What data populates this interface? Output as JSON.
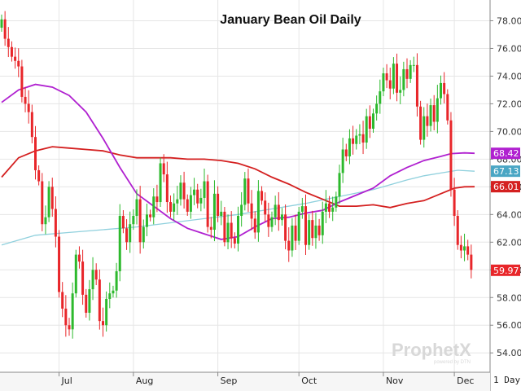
{
  "chart_data": {
    "type": "candlestick",
    "title": "January Bean Oil Daily",
    "xlabel": "",
    "ylabel": "",
    "ylim": [
      52.6,
      79.5
    ],
    "yticks": [
      54.0,
      56.0,
      58.0,
      60.0,
      62.0,
      64.0,
      66.0,
      68.0,
      70.0,
      72.0,
      74.0,
      76.0,
      78.0
    ],
    "x_tick_labels": [
      "Jul",
      "Aug",
      "Sep",
      "Oct",
      "Nov",
      "Dec"
    ],
    "x_tick_bar_index": [
      17,
      39,
      64,
      88,
      113,
      134
    ],
    "bar_count": 140,
    "period_label": "1 Day",
    "grid": true,
    "up_color": "#2db92d",
    "down_color": "#e8262a",
    "series": [
      {
        "type": "candlestick",
        "closes": [
          78.1,
          76.7,
          76.1,
          75.4,
          75.1,
          74.7,
          72.5,
          72.0,
          71.4,
          69.6,
          67.2,
          66.4,
          63.3,
          63.8,
          66.0,
          64.4,
          62.4,
          58.4,
          57.2,
          56.0,
          55.7,
          58.3,
          61.1,
          60.6,
          58.2,
          56.9,
          58.6,
          60.0,
          59.3,
          56.3,
          56.0,
          57.9,
          58.3,
          58.5,
          59.9,
          63.9,
          63.0,
          62.0,
          63.3,
          63.9,
          65.1,
          62.0,
          63.1,
          64.0,
          63.8,
          65.3,
          64.9,
          67.7,
          66.9,
          64.9,
          64.2,
          64.8,
          65.1,
          66.3,
          65.1,
          64.2,
          65.4,
          65.8,
          64.8,
          65.2,
          66.4,
          63.1,
          62.9,
          65.5,
          63.9,
          64.2,
          62.0,
          63.4,
          62.3,
          61.9,
          63.9,
          64.7,
          66.6,
          64.8,
          63.7,
          62.7,
          65.7,
          65.0,
          64.0,
          63.1,
          63.8,
          64.7,
          63.6,
          64.0,
          62.1,
          61.4,
          63.2,
          62.1,
          64.2,
          64.6,
          61.8,
          63.6,
          62.3,
          63.2,
          62.5,
          64.2,
          64.8,
          64.2,
          64.5,
          65.3,
          67.0,
          68.7,
          68.2,
          69.5,
          69.1,
          69.7,
          69.8,
          69.2,
          71.1,
          70.2,
          71.3,
          72.0,
          72.9,
          74.2,
          73.7,
          73.1,
          74.9,
          72.8,
          73.0,
          74.5,
          73.8,
          74.8,
          74.8,
          71.8,
          69.4,
          71.1,
          70.4,
          71.9,
          70.7,
          72.4,
          73.5,
          72.7,
          70.8,
          65.8,
          63.9,
          61.8,
          61.4,
          61.7,
          61.1,
          60.0
        ],
        "last": 59.97,
        "last_color": "#e8262a"
      },
      {
        "type": "line",
        "label": "68.42",
        "color": "#b020d0",
        "knots": [
          [
            0,
            72.1
          ],
          [
            5,
            73.0
          ],
          [
            10,
            73.4
          ],
          [
            15,
            73.2
          ],
          [
            20,
            72.6
          ],
          [
            25,
            71.4
          ],
          [
            30,
            69.5
          ],
          [
            35,
            67.4
          ],
          [
            40,
            65.5
          ],
          [
            45,
            64.6
          ],
          [
            50,
            63.7
          ],
          [
            55,
            63.0
          ],
          [
            60,
            62.6
          ],
          [
            65,
            62.2
          ],
          [
            70,
            62.4
          ],
          [
            75,
            63.1
          ],
          [
            80,
            63.7
          ],
          [
            85,
            63.8
          ],
          [
            90,
            64.1
          ],
          [
            95,
            64.3
          ],
          [
            100,
            64.9
          ],
          [
            105,
            65.4
          ],
          [
            110,
            65.9
          ],
          [
            115,
            66.8
          ],
          [
            120,
            67.4
          ],
          [
            125,
            67.9
          ],
          [
            130,
            68.2
          ],
          [
            133,
            68.4
          ],
          [
            137,
            68.45
          ],
          [
            140,
            68.42
          ]
        ]
      },
      {
        "type": "line",
        "label": "66.01",
        "color": "#d42020",
        "knots": [
          [
            0,
            66.7
          ],
          [
            5,
            68.1
          ],
          [
            10,
            68.6
          ],
          [
            15,
            68.9
          ],
          [
            20,
            68.8
          ],
          [
            25,
            68.7
          ],
          [
            30,
            68.6
          ],
          [
            35,
            68.3
          ],
          [
            40,
            68.1
          ],
          [
            45,
            68.1
          ],
          [
            50,
            68.1
          ],
          [
            55,
            68.0
          ],
          [
            60,
            68.0
          ],
          [
            65,
            67.9
          ],
          [
            70,
            67.7
          ],
          [
            75,
            67.3
          ],
          [
            80,
            66.7
          ],
          [
            85,
            66.2
          ],
          [
            90,
            65.6
          ],
          [
            95,
            65.1
          ],
          [
            100,
            64.6
          ],
          [
            105,
            64.6
          ],
          [
            110,
            64.7
          ],
          [
            115,
            64.5
          ],
          [
            120,
            64.8
          ],
          [
            125,
            65.0
          ],
          [
            130,
            65.5
          ],
          [
            134,
            65.9
          ],
          [
            137,
            66.0
          ],
          [
            140,
            66.01
          ]
        ]
      },
      {
        "type": "line",
        "label": "67.13",
        "color": "#8fd0dd",
        "knots": [
          [
            0,
            61.8
          ],
          [
            10,
            62.5
          ],
          [
            20,
            62.7
          ],
          [
            30,
            62.9
          ],
          [
            40,
            63.1
          ],
          [
            50,
            63.4
          ],
          [
            60,
            63.7
          ],
          [
            70,
            64.0
          ],
          [
            80,
            64.4
          ],
          [
            90,
            64.8
          ],
          [
            100,
            65.3
          ],
          [
            110,
            65.8
          ],
          [
            120,
            66.5
          ],
          [
            125,
            66.8
          ],
          [
            130,
            67.0
          ],
          [
            135,
            67.2
          ],
          [
            140,
            67.13
          ]
        ]
      }
    ]
  },
  "watermark": {
    "brand": "ProphetX",
    "tagline": "powered by DTN"
  }
}
